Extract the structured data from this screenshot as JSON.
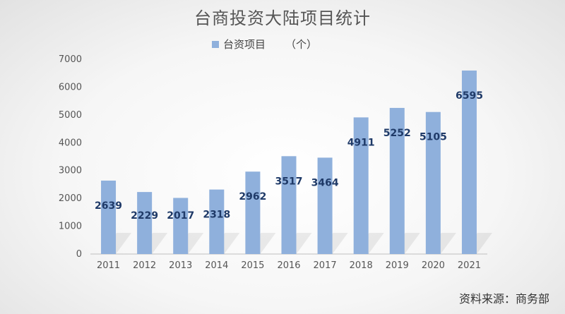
{
  "chart_data": {
    "type": "bar",
    "title": "台商投资大陆项目统计",
    "categories": [
      "2011",
      "2012",
      "2013",
      "2014",
      "2015",
      "2016",
      "2017",
      "2018",
      "2019",
      "2020",
      "2021"
    ],
    "series": [
      {
        "name": "台资项目",
        "values": [
          2639,
          2229,
          2017,
          2318,
          2962,
          3517,
          3464,
          4911,
          5252,
          5105,
          6595
        ]
      }
    ],
    "unit": "（个）",
    "ylim": [
      0,
      7000
    ],
    "yticks": [
      0,
      1000,
      2000,
      3000,
      4000,
      5000,
      6000,
      7000
    ],
    "grid": false,
    "legend_position": "top",
    "bar_color": "#8fb0dc",
    "label_color": "#1f3a68"
  },
  "source": "资料来源：商务部"
}
